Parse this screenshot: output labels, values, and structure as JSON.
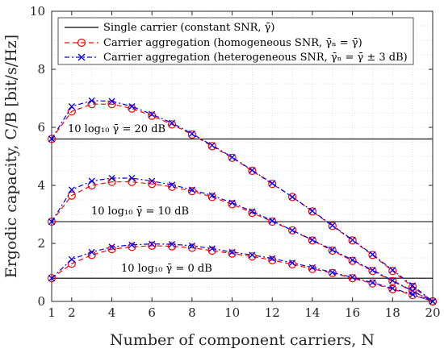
{
  "chart_data": {
    "type": "line",
    "xlabel": "Number of component carriers, N",
    "ylabel": "Ergodic capacity, C/B [bit/s/Hz]",
    "xlim": [
      1,
      20
    ],
    "ylim": [
      0,
      10
    ],
    "xticks": [
      1,
      2,
      4,
      6,
      8,
      10,
      12,
      14,
      16,
      18,
      20
    ],
    "yticks": [
      0,
      2,
      4,
      6,
      8,
      10
    ],
    "grid": true,
    "legend_position": "top",
    "legend": [
      "Single carrier (constant SNR, γ̄)",
      "Carrier aggregation (homogeneous SNR, γ̄ₙ = γ̄)",
      "Carrier aggregation (heterogeneous SNR, γ̄ₙ = γ̄ ± 3 dB)"
    ],
    "annotations": [
      "10 log₁₀ γ̄ = 20 dB",
      "10 log₁₀ γ̄ = 10 dB",
      "10 log₁₀ γ̄ = 0 dB"
    ],
    "x": [
      1,
      2,
      3,
      4,
      5,
      6,
      7,
      8,
      9,
      10,
      11,
      12,
      13,
      14,
      15,
      16,
      17,
      18,
      19,
      20
    ],
    "series": [
      {
        "style": "single",
        "snr_db": 20,
        "values": [
          5.6,
          5.6,
          5.6,
          5.6,
          5.6,
          5.6,
          5.6,
          5.6,
          5.6,
          5.6,
          5.6,
          5.6,
          5.6,
          5.6,
          5.6,
          5.6,
          5.6,
          5.6,
          5.6,
          5.6
        ]
      },
      {
        "style": "single",
        "snr_db": 10,
        "values": [
          2.75,
          2.75,
          2.75,
          2.75,
          2.75,
          2.75,
          2.75,
          2.75,
          2.75,
          2.75,
          2.75,
          2.75,
          2.75,
          2.75,
          2.75,
          2.75,
          2.75,
          2.75,
          2.75,
          2.75
        ]
      },
      {
        "style": "single",
        "snr_db": 0,
        "values": [
          0.8,
          0.8,
          0.8,
          0.8,
          0.8,
          0.8,
          0.8,
          0.8,
          0.8,
          0.8,
          0.8,
          0.8,
          0.8,
          0.8,
          0.8,
          0.8,
          0.8,
          0.8,
          0.8,
          0.8
        ]
      },
      {
        "style": "homogeneous",
        "snr_db": 20,
        "values": [
          5.6,
          6.55,
          6.8,
          6.8,
          6.65,
          6.4,
          6.1,
          5.75,
          5.35,
          4.95,
          4.5,
          4.05,
          3.6,
          3.1,
          2.6,
          2.1,
          1.6,
          1.05,
          0.5,
          0.0
        ]
      },
      {
        "style": "heterogeneous",
        "snr_db": 20,
        "values": [
          5.6,
          6.72,
          6.92,
          6.9,
          6.72,
          6.45,
          6.15,
          5.78,
          5.38,
          4.97,
          4.52,
          4.07,
          3.6,
          3.12,
          2.62,
          2.12,
          1.62,
          1.08,
          0.55,
          0.0
        ]
      },
      {
        "style": "homogeneous",
        "snr_db": 10,
        "values": [
          2.75,
          3.65,
          4.0,
          4.12,
          4.12,
          4.05,
          3.95,
          3.8,
          3.6,
          3.35,
          3.05,
          2.75,
          2.45,
          2.1,
          1.75,
          1.4,
          1.05,
          0.7,
          0.35,
          0.0
        ]
      },
      {
        "style": "heterogeneous",
        "snr_db": 10,
        "values": [
          2.75,
          3.85,
          4.15,
          4.25,
          4.25,
          4.15,
          4.02,
          3.85,
          3.65,
          3.4,
          3.1,
          2.78,
          2.45,
          2.12,
          1.78,
          1.43,
          1.08,
          0.72,
          0.36,
          0.0
        ]
      },
      {
        "style": "homogeneous",
        "snr_db": 0,
        "values": [
          0.8,
          1.3,
          1.6,
          1.8,
          1.88,
          1.92,
          1.9,
          1.85,
          1.75,
          1.65,
          1.55,
          1.42,
          1.28,
          1.12,
          0.98,
          0.8,
          0.62,
          0.42,
          0.22,
          0.0
        ]
      },
      {
        "style": "heterogeneous",
        "snr_db": 0,
        "values": [
          0.8,
          1.45,
          1.7,
          1.88,
          1.95,
          1.98,
          1.97,
          1.92,
          1.82,
          1.7,
          1.6,
          1.48,
          1.33,
          1.17,
          1.0,
          0.83,
          0.65,
          0.45,
          0.24,
          0.0
        ]
      }
    ]
  },
  "colors": {
    "single": "#000000",
    "homogeneous": "#ff0000",
    "heterogeneous": "#0000ff",
    "grid": "#d9d9d9",
    "axis": "#262626"
  }
}
